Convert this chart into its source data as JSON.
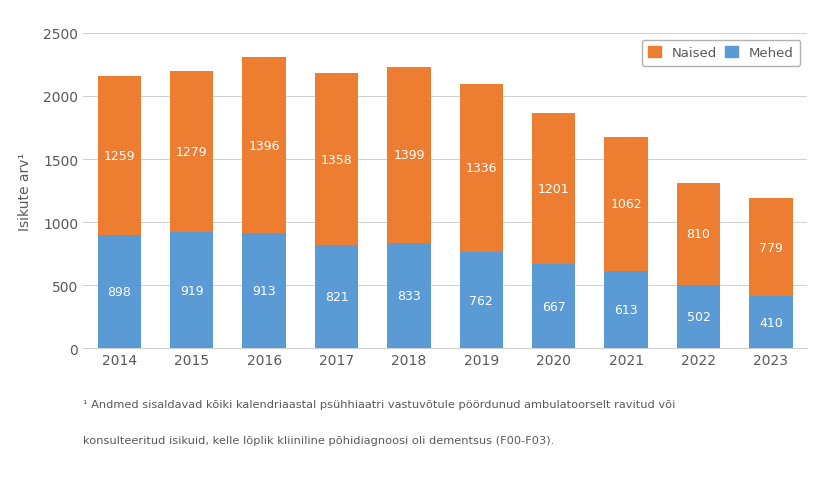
{
  "years": [
    "2014",
    "2015",
    "2016",
    "2017",
    "2018",
    "2019",
    "2020",
    "2021",
    "2022",
    "2023"
  ],
  "mehed": [
    898,
    919,
    913,
    821,
    833,
    762,
    667,
    613,
    502,
    410
  ],
  "naised": [
    1259,
    1279,
    1396,
    1358,
    1399,
    1336,
    1201,
    1062,
    810,
    779
  ],
  "mehed_color": "#5b9bd5",
  "naised_color": "#ed7d31",
  "ylabel": "Isikute arv¹",
  "ylim": [
    0,
    2500
  ],
  "yticks": [
    0,
    500,
    1000,
    1500,
    2000,
    2500
  ],
  "legend_naised": "Naised",
  "legend_mehed": "Mehed",
  "footnote_line1": "¹ Andmed sisaldavad kõiki kalendriaastal psühhiaatri vastuvõtule pöördunud ambulatoorselt ravitud või",
  "footnote_line2": "konsulteeritud isikuid, kelle lõplik kliiniline põhidiagnoosi oli dementsus (F00-F03).",
  "background_color": "#ffffff",
  "grid_color": "#d0d0d0",
  "text_color": "#595959",
  "label_fontsize": 9,
  "tick_fontsize": 10,
  "ylabel_fontsize": 10,
  "bar_width": 0.6
}
